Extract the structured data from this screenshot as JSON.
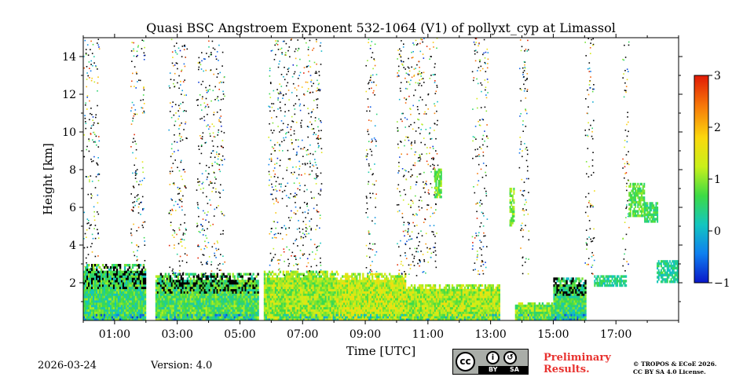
{
  "chart_data": {
    "type": "heatmap",
    "title": "Quasi BSC Angstroem Exponent 532-1064 (V1) of pollyxt_cyp at Limassol",
    "xlabel": "Time [UTC]",
    "ylabel": "Height [km]",
    "xlim": [
      0,
      19
    ],
    "ylim": [
      0,
      15
    ],
    "xticks": [
      1,
      3,
      5,
      7,
      9,
      11,
      13,
      15,
      17
    ],
    "xtick_labels": [
      "01:00",
      "03:00",
      "05:00",
      "07:00",
      "09:00",
      "11:00",
      "13:00",
      "15:00",
      "17:00"
    ],
    "yticks": [
      2,
      4,
      6,
      8,
      10,
      12,
      14
    ],
    "ytick_labels": [
      "2",
      "4",
      "6",
      "8",
      "10",
      "12",
      "14"
    ],
    "colorbar": {
      "range": [
        -1,
        3
      ],
      "ticks": [
        -1,
        0,
        1,
        2,
        3
      ],
      "tick_labels": [
        "−1",
        "0",
        "1",
        "2",
        "3"
      ],
      "colors": [
        "#0a17c9",
        "#0f7ff0",
        "#13c6c0",
        "#3ddb45",
        "#c9f01a",
        "#fbd80d",
        "#f77a09",
        "#e11a06"
      ]
    },
    "no_signal_gaps": [
      [
        2.0,
        2.3
      ],
      [
        5.56,
        5.76
      ],
      [
        13.3,
        13.78
      ],
      [
        16.05,
        19.0
      ]
    ],
    "low_layer": [
      {
        "start": 0.0,
        "end": 2.0,
        "top_km": 3.0,
        "mean_ae": 0.6
      },
      {
        "start": 2.3,
        "end": 5.56,
        "top_km": 2.5,
        "mean_ae": 0.7
      },
      {
        "start": 5.76,
        "end": 8.1,
        "top_km": 2.6,
        "mean_ae": 1.1
      },
      {
        "start": 8.1,
        "end": 10.3,
        "top_km": 2.5,
        "mean_ae": 1.3
      },
      {
        "start": 10.3,
        "end": 13.3,
        "top_km": 1.9,
        "mean_ae": 1.2
      },
      {
        "start": 13.78,
        "end": 15.0,
        "top_km": 0.9,
        "mean_ae": 0.9
      },
      {
        "start": 15.0,
        "end": 16.05,
        "top_km": 2.2,
        "mean_ae": 0.6
      }
    ],
    "upper_noise_columns": [
      {
        "start": 0.0,
        "end": 0.5,
        "top_km": 15.0
      },
      {
        "start": 1.5,
        "end": 1.95,
        "top_km": 15.0
      },
      {
        "start": 2.7,
        "end": 3.3,
        "top_km": 15.0
      },
      {
        "start": 3.6,
        "end": 4.5,
        "top_km": 15.0
      },
      {
        "start": 5.9,
        "end": 7.6,
        "top_km": 15.0
      },
      {
        "start": 9.0,
        "end": 9.35,
        "top_km": 15.0
      },
      {
        "start": 10.0,
        "end": 11.3,
        "top_km": 15.0
      },
      {
        "start": 12.4,
        "end": 12.9,
        "top_km": 15.0
      },
      {
        "start": 13.9,
        "end": 14.2,
        "top_km": 15.0
      },
      {
        "start": 16.0,
        "end": 16.3,
        "top_km": 15.0
      },
      {
        "start": 17.2,
        "end": 17.4,
        "top_km": 15.0
      }
    ],
    "features": [
      {
        "time_start": 11.2,
        "time_end": 11.4,
        "height_bottom": 6.5,
        "height_top": 8.0,
        "ae": 0.9
      },
      {
        "time_start": 13.6,
        "time_end": 13.75,
        "height_bottom": 5.0,
        "height_top": 7.0,
        "ae": 1.0
      },
      {
        "time_start": 17.4,
        "time_end": 17.9,
        "height_bottom": 5.5,
        "height_top": 7.3,
        "ae": 0.8
      },
      {
        "time_start": 17.9,
        "time_end": 18.3,
        "height_bottom": 5.2,
        "height_top": 6.2,
        "ae": 0.6
      },
      {
        "time_start": 16.3,
        "time_end": 17.3,
        "height_bottom": 1.8,
        "height_top": 2.4,
        "ae": 0.4
      },
      {
        "time_start": 18.3,
        "time_end": 19.0,
        "height_bottom": 2.0,
        "height_top": 3.2,
        "ae": 0.4
      }
    ]
  },
  "footer": {
    "date": "2026-03-24",
    "version": "Version: 4.0",
    "cc_badge": {
      "main": "cc",
      "by": "BY",
      "sa": "SA"
    },
    "preliminary_line1": "Preliminary",
    "preliminary_line2": "Results.",
    "copyright_line1": "© TROPOS & ECoE 2026.",
    "copyright_line2": "CC BY SA 4.0 License."
  }
}
